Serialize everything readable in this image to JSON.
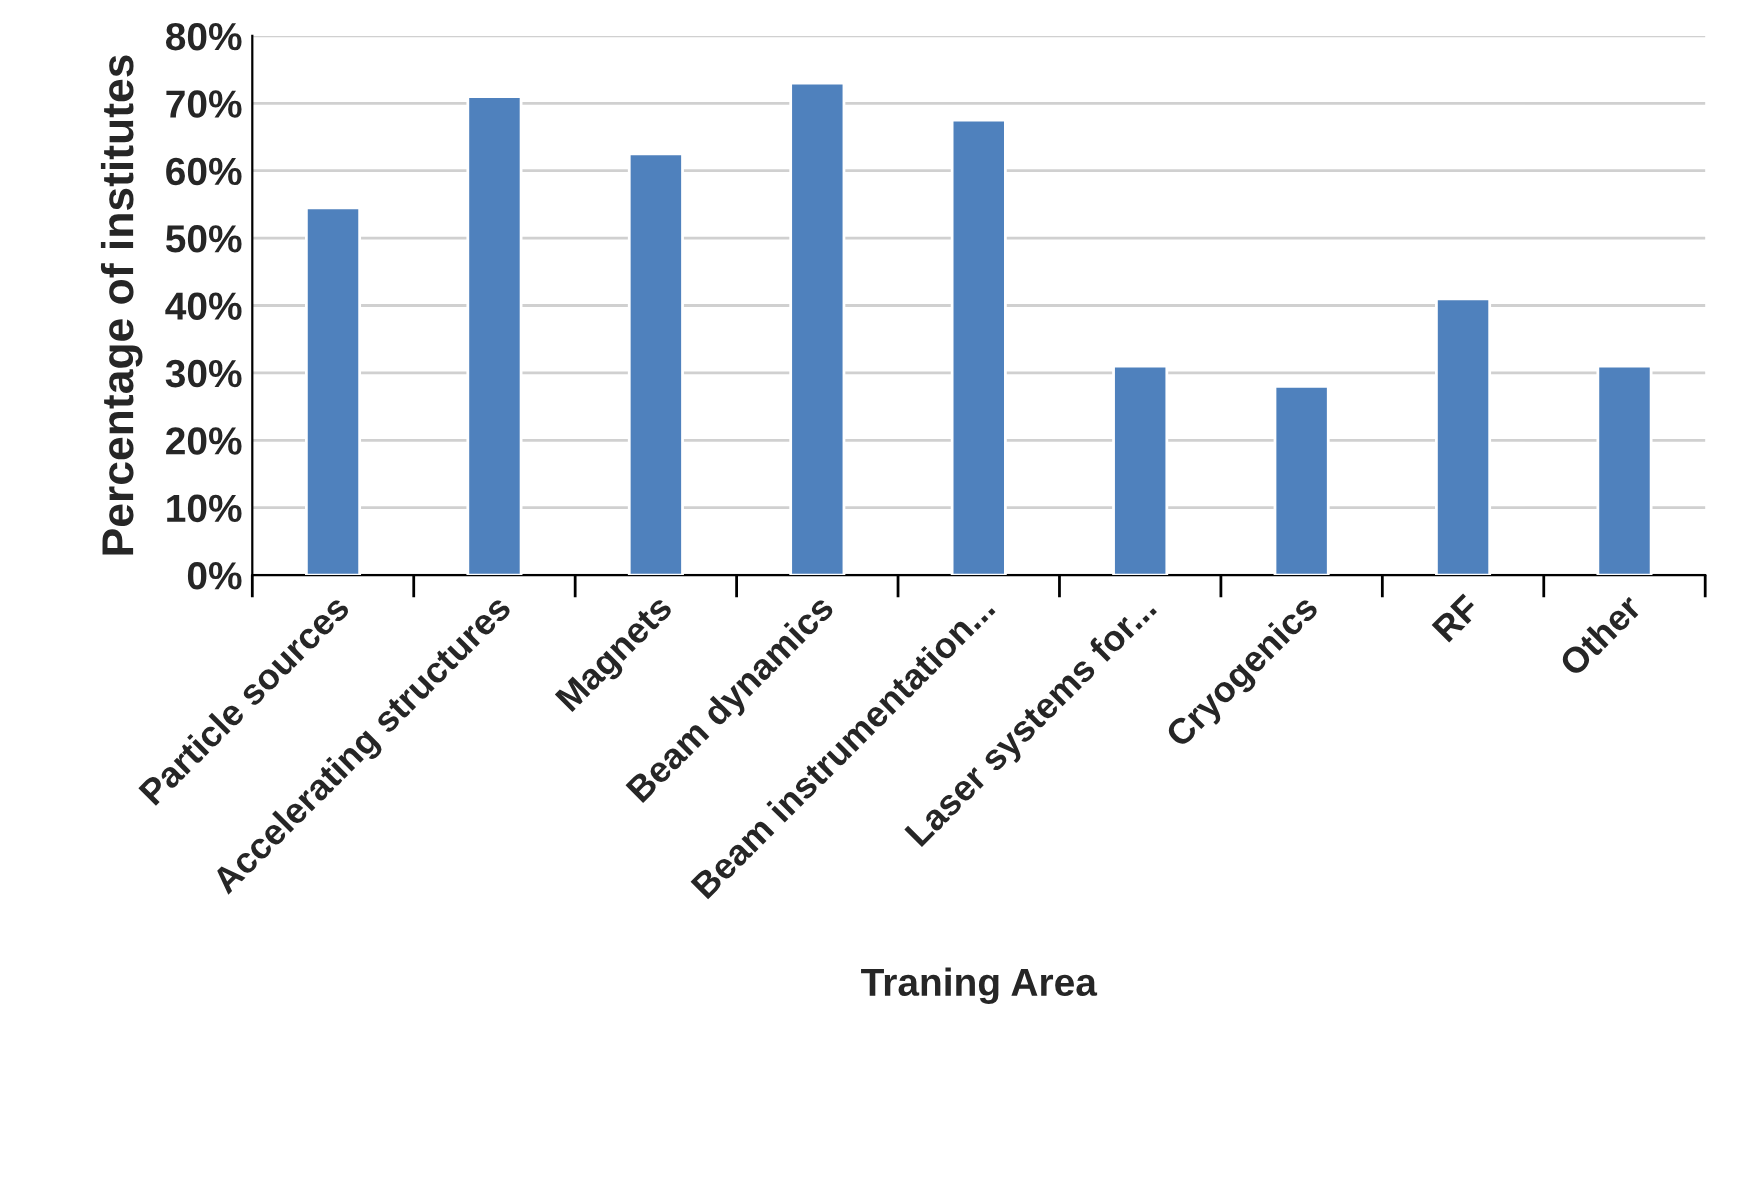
{
  "chart_data": {
    "type": "bar",
    "xlabel": "Traning Area",
    "ylabel": "Percentage of institutes",
    "categories": [
      "Particle sources",
      "Accelerating structures",
      "Magnets",
      "Beam dynamics",
      "Beam instrumentation...",
      "Laser systems for...",
      "Cryogenics",
      "RF",
      "Other"
    ],
    "values": [
      54.5,
      71,
      62.5,
      73,
      67.5,
      31,
      28,
      41,
      31
    ],
    "color": "#4f81bd",
    "ylim": [
      0,
      80
    ],
    "yticks": [
      {
        "value": 0,
        "label": "0%"
      },
      {
        "value": 10,
        "label": "10%"
      },
      {
        "value": 20,
        "label": "20%"
      },
      {
        "value": 30,
        "label": "30%"
      },
      {
        "value": 40,
        "label": "40%"
      },
      {
        "value": 50,
        "label": "50%"
      },
      {
        "value": 60,
        "label": "60%"
      },
      {
        "value": 70,
        "label": "70%"
      },
      {
        "value": 80,
        "label": "80%"
      }
    ],
    "grid": "y",
    "legend": false
  }
}
